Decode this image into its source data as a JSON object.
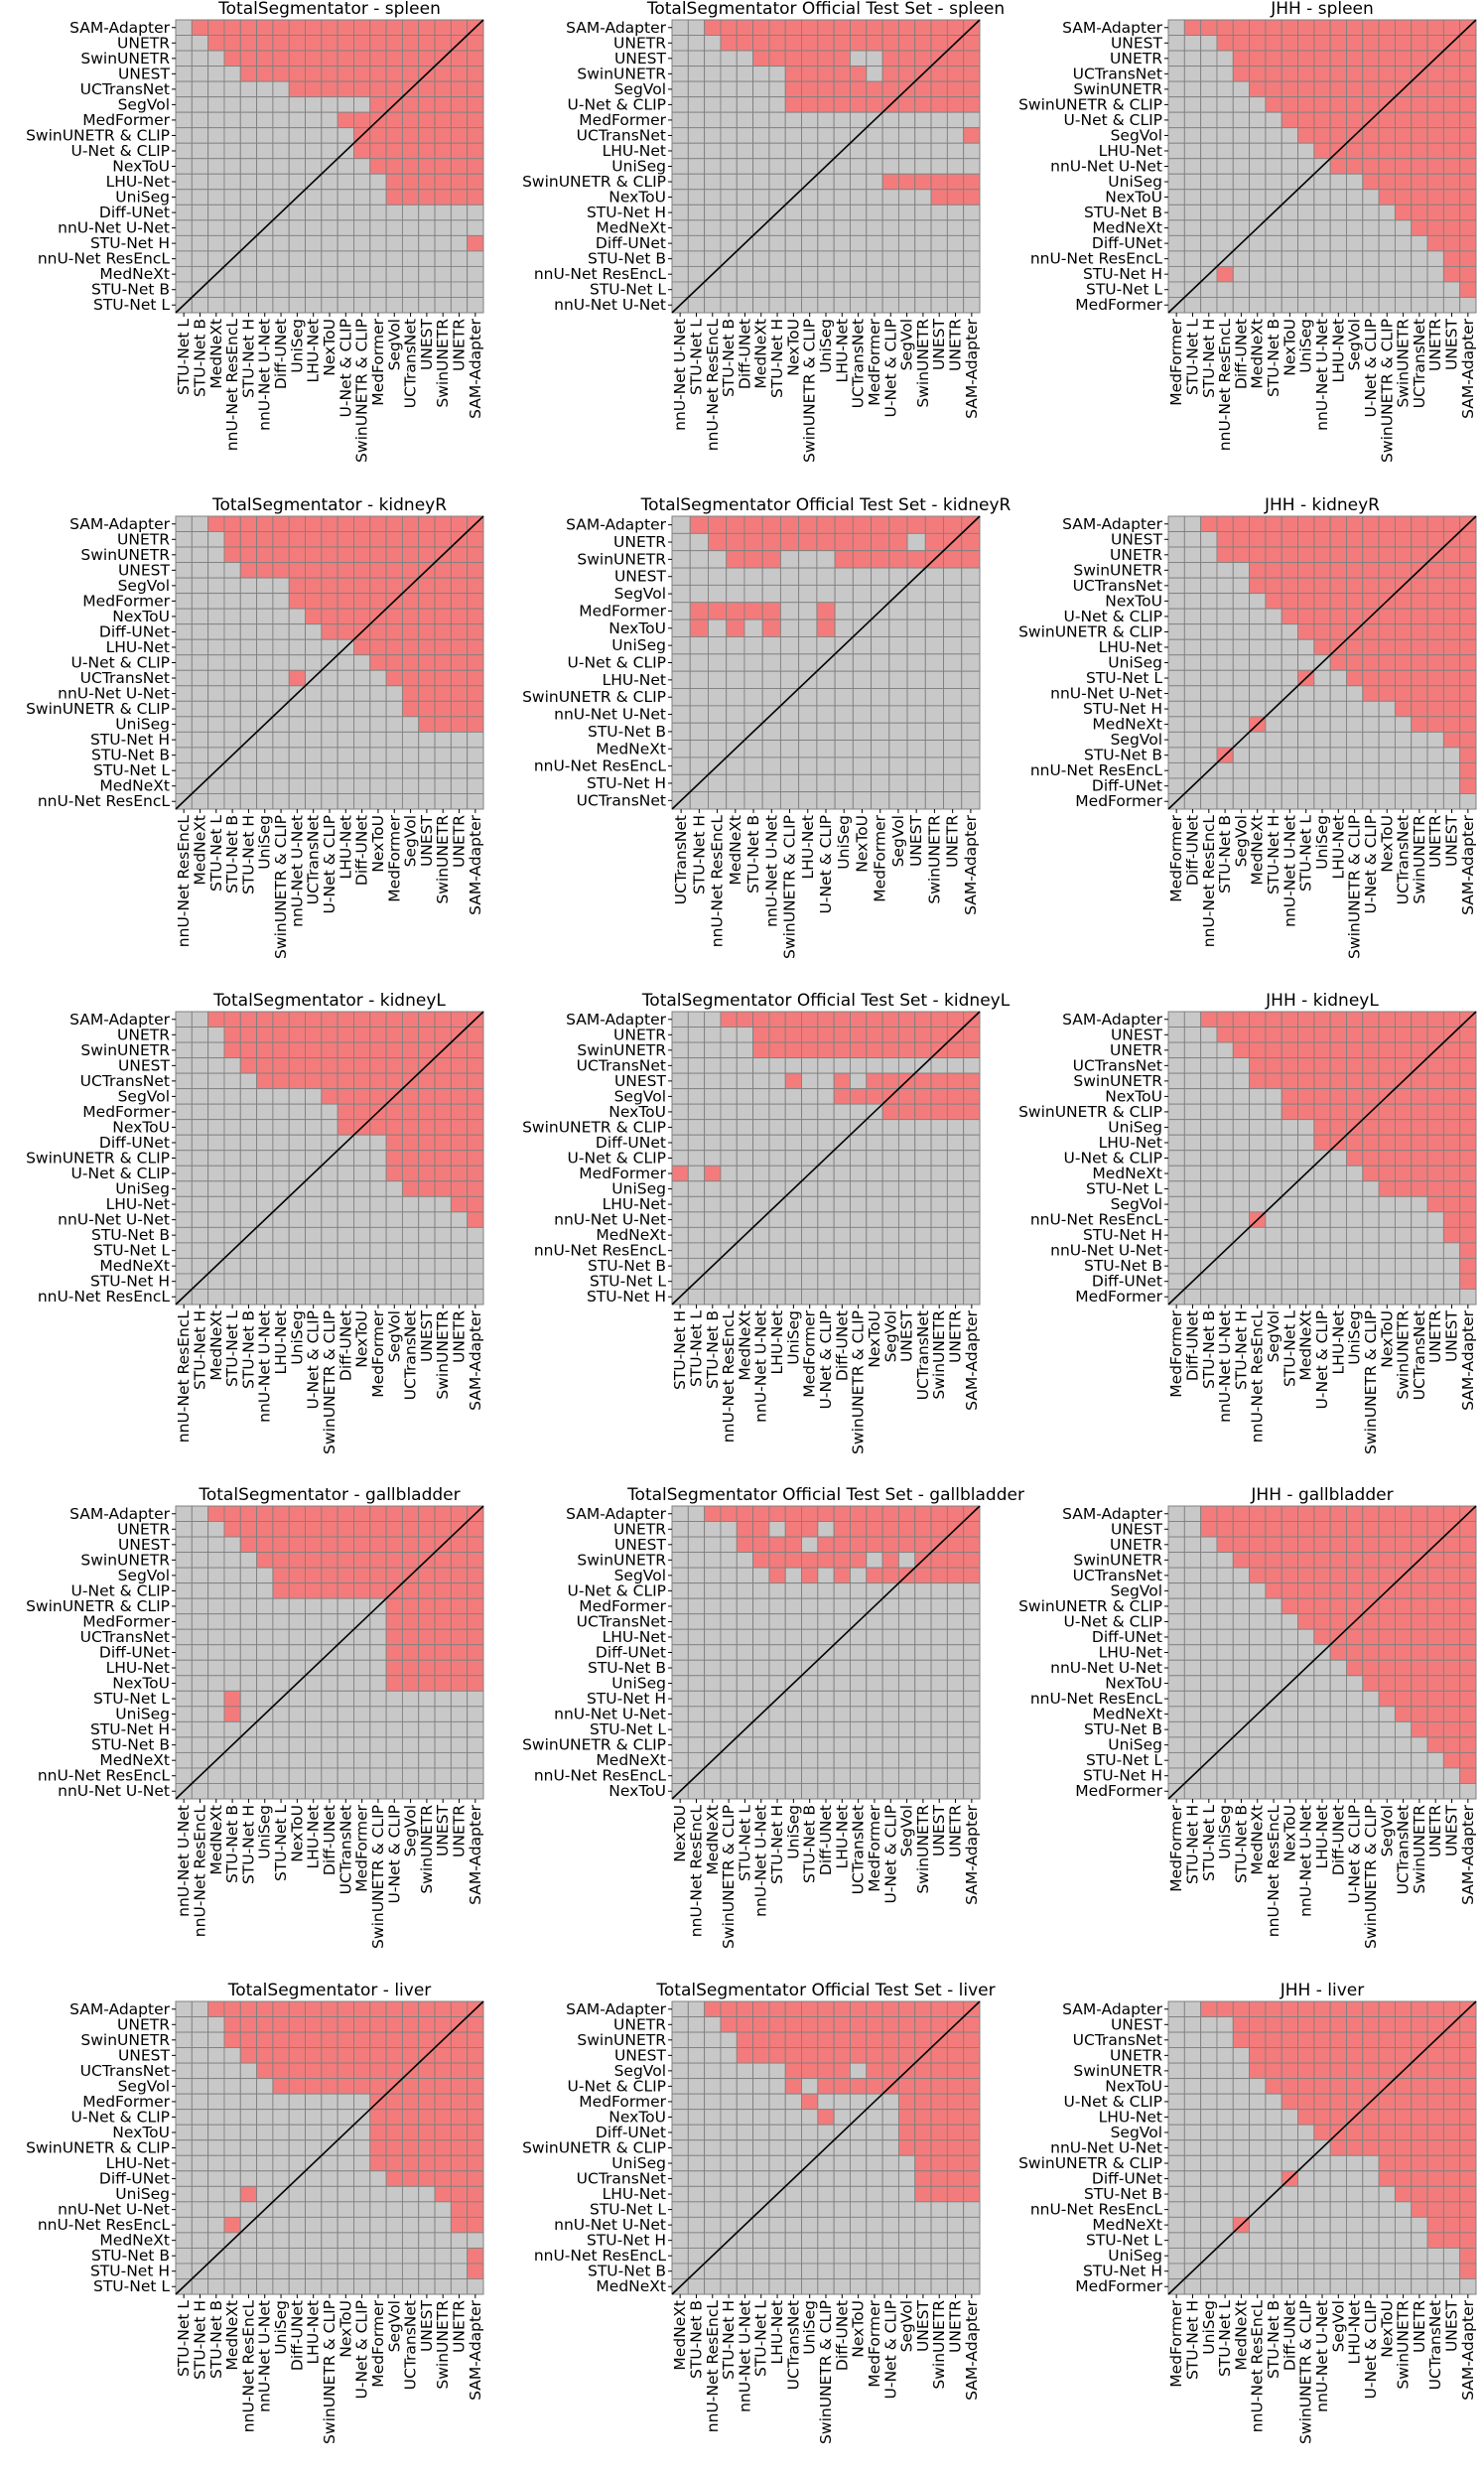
{
  "colors": {
    "significant": "#f47b7b",
    "not_significant": "#c8c8c8",
    "cell_border": "#808080",
    "diagonal": "#000000"
  },
  "chart_data": [
    {
      "type": "heatmap",
      "title": "TotalSegmentator - spleen",
      "rows": [
        "SAM-Adapter",
        "UNETR",
        "SwinUNETR",
        "UNEST",
        "UCTransNet",
        "SegVol",
        "MedFormer",
        "SwinUNETR & CLIP",
        "U-Net & CLIP",
        "NexToU",
        "LHU-Net",
        "UniSeg",
        "Diff-UNet",
        "nnU-Net U-Net",
        "STU-Net H",
        "nnU-Net ResEncL",
        "MedNeXt",
        "STU-Net B",
        "STU-Net L"
      ],
      "red_counts": [
        18,
        17,
        16,
        15,
        12,
        9,
        9,
        8,
        8,
        7,
        6,
        6,
        0,
        0,
        1,
        0,
        0,
        0,
        0
      ],
      "extra_grey": [
        [
          5,
          10
        ],
        [
          5,
          11
        ]
      ],
      "extra_red": []
    },
    {
      "type": "heatmap",
      "title": "TotalSegmentator Official Test Set - spleen",
      "rows": [
        "SAM-Adapter",
        "UNETR",
        "UNEST",
        "SwinUNETR",
        "SegVol",
        "U-Net & CLIP",
        "MedFormer",
        "UCTransNet",
        "LHU-Net",
        "UniSeg",
        "SwinUNETR & CLIP",
        "NexToU",
        "STU-Net H",
        "MedNeXt",
        "Diff-UNet",
        "STU-Net B",
        "nnU-Net ResEncL",
        "STU-Net L",
        "nnU-Net U-Net"
      ],
      "red_counts": [
        17,
        16,
        14,
        12,
        13,
        13,
        0,
        1,
        0,
        0,
        6,
        3,
        0,
        0,
        0,
        0,
        0,
        0,
        0
      ],
      "extra_grey": [
        [
          2,
          11
        ],
        [
          2,
          12
        ],
        [
          3,
          12
        ],
        [
          4,
          5
        ],
        [
          4,
          6
        ],
        [
          5,
          3
        ],
        [
          5,
          5
        ],
        [
          5,
          6
        ],
        [
          10,
          1
        ],
        [
          11,
          1
        ]
      ],
      "extra_red": []
    },
    {
      "type": "heatmap",
      "title": "JHH - spleen",
      "rows": [
        "SAM-Adapter",
        "UNEST",
        "UNETR",
        "UCTransNet",
        "SwinUNETR",
        "SwinUNETR & CLIP",
        "U-Net & CLIP",
        "SegVol",
        "LHU-Net",
        "nnU-Net U-Net",
        "UniSeg",
        "NexToU",
        "STU-Net B",
        "MedNeXt",
        "Diff-UNet",
        "nnU-Net ResEncL",
        "STU-Net H",
        "STU-Net L",
        "MedFormer"
      ],
      "red_counts": [
        18,
        16,
        15,
        15,
        14,
        13,
        12,
        11,
        10,
        9,
        7,
        6,
        5,
        4,
        3,
        2,
        2,
        1,
        0
      ],
      "extra_grey": [
        [
          12,
          1
        ],
        [
          14,
          1
        ],
        [
          16,
          1
        ]
      ],
      "extra_red": [
        [
          16,
          3
        ]
      ]
    },
    {
      "type": "heatmap",
      "title": "TotalSegmentator - kidneyR",
      "rows": [
        "SAM-Adapter",
        "UNETR",
        "SwinUNETR",
        "UNEST",
        "SegVol",
        "MedFormer",
        "NexToU",
        "Diff-UNet",
        "LHU-Net",
        "U-Net & CLIP",
        "UCTransNet",
        "nnU-Net U-Net",
        "SwinUNETR & CLIP",
        "UniSeg",
        "STU-Net H",
        "STU-Net B",
        "STU-Net L",
        "MedNeXt",
        "nnU-Net ResEncL"
      ],
      "red_counts": [
        17,
        16,
        16,
        15,
        13,
        12,
        11,
        10,
        8,
        7,
        6,
        5,
        5,
        4,
        0,
        0,
        0,
        0,
        0
      ],
      "extra_grey": [
        [
          4,
          6
        ],
        [
          5,
          6
        ],
        [
          6,
          6
        ],
        [
          7,
          6
        ],
        [
          8,
          6
        ],
        [
          8,
          7
        ],
        [
          7,
          8
        ],
        [
          8,
          3
        ],
        [
          9,
          3
        ],
        [
          10,
          3
        ],
        [
          9,
          4
        ],
        [
          10,
          4
        ],
        [
          10,
          6
        ],
        [
          11,
          4
        ]
      ],
      "extra_red": [
        [
          10,
          7
        ]
      ]
    },
    {
      "type": "heatmap",
      "title": "TotalSegmentator Official Test Set - kidneyR",
      "rows": [
        "SAM-Adapter",
        "UNETR",
        "SwinUNETR",
        "UNEST",
        "SegVol",
        "MedFormer",
        "NexToU",
        "UniSeg",
        "U-Net & CLIP",
        "LHU-Net",
        "SwinUNETR & CLIP",
        "nnU-Net U-Net",
        "STU-Net B",
        "MedNeXt",
        "nnU-Net ResEncL",
        "STU-Net H",
        "UCTransNet"
      ],
      "red_counts": [
        16,
        15,
        14,
        0,
        0,
        0,
        0,
        0,
        0,
        0,
        0,
        0,
        0,
        0,
        0,
        0,
        0
      ],
      "extra_grey": [
        [
          1,
          13
        ],
        [
          2,
          6
        ],
        [
          2,
          7
        ],
        [
          2,
          8
        ]
      ],
      "extra_red": [
        [
          5,
          1
        ],
        [
          5,
          2
        ],
        [
          5,
          3
        ],
        [
          5,
          4
        ],
        [
          5,
          5
        ],
        [
          5,
          8
        ],
        [
          6,
          1
        ],
        [
          6,
          3
        ],
        [
          6,
          5
        ],
        [
          6,
          8
        ]
      ]
    },
    {
      "type": "heatmap",
      "title": "JHH - kidneyR",
      "rows": [
        "SAM-Adapter",
        "UNEST",
        "UNETR",
        "SwinUNETR",
        "UCTransNet",
        "NexToU",
        "U-Net & CLIP",
        "SwinUNETR & CLIP",
        "LHU-Net",
        "UniSeg",
        "STU-Net L",
        "nnU-Net U-Net",
        "STU-Net H",
        "MedNeXt",
        "SegVol",
        "STU-Net B",
        "nnU-Net ResEncL",
        "Diff-UNet",
        "MedFormer"
      ],
      "red_counts": [
        17,
        16,
        16,
        14,
        14,
        13,
        12,
        11,
        10,
        9,
        8,
        7,
        5,
        4,
        2,
        1,
        1,
        1,
        0
      ],
      "extra_grey": [
        [
          12,
          4
        ],
        [
          15,
          1
        ]
      ],
      "extra_red": [
        [
          10,
          8
        ],
        [
          13,
          5
        ],
        [
          15,
          3
        ]
      ]
    },
    {
      "type": "heatmap",
      "title": "TotalSegmentator - kidneyL",
      "rows": [
        "SAM-Adapter",
        "UNETR",
        "SwinUNETR",
        "UNEST",
        "UCTransNet",
        "SegVol",
        "MedFormer",
        "NexToU",
        "Diff-UNet",
        "SwinUNETR & CLIP",
        "U-Net & CLIP",
        "UniSeg",
        "LHU-Net",
        "nnU-Net U-Net",
        "STU-Net B",
        "STU-Net L",
        "MedNeXt",
        "STU-Net H",
        "nnU-Net ResEncL"
      ],
      "red_counts": [
        17,
        16,
        16,
        15,
        14,
        10,
        9,
        9,
        6,
        6,
        6,
        5,
        2,
        1,
        0,
        0,
        0,
        0,
        0
      ],
      "extra_grey": [
        [
          12,
          1
        ]
      ],
      "extra_red": []
    },
    {
      "type": "heatmap",
      "title": "TotalSegmentator Official Test Set - kidneyL",
      "rows": [
        "SAM-Adapter",
        "UNETR",
        "SwinUNETR",
        "UCTransNet",
        "UNEST",
        "SegVol",
        "NexToU",
        "SwinUNETR & CLIP",
        "Diff-UNet",
        "U-Net & CLIP",
        "MedFormer",
        "UniSeg",
        "LHU-Net",
        "nnU-Net U-Net",
        "MedNeXt",
        "nnU-Net ResEncL",
        "STU-Net B",
        "STU-Net L",
        "STU-Net H"
      ],
      "red_counts": [
        16,
        14,
        14,
        0,
        12,
        9,
        6,
        0,
        0,
        0,
        0,
        0,
        0,
        0,
        0,
        0,
        0,
        0,
        0
      ],
      "extra_grey": [
        [
          4,
          8
        ],
        [
          4,
          9
        ],
        [
          4,
          11
        ]
      ],
      "extra_red": [
        [
          10,
          0
        ],
        [
          10,
          2
        ]
      ]
    },
    {
      "type": "heatmap",
      "title": "JHH - kidneyL",
      "rows": [
        "SAM-Adapter",
        "UNEST",
        "UNETR",
        "UCTransNet",
        "SwinUNETR",
        "NexToU",
        "SwinUNETR & CLIP",
        "UniSeg",
        "LHU-Net",
        "U-Net & CLIP",
        "MedNeXt",
        "STU-Net L",
        "SegVol",
        "nnU-Net ResEncL",
        "STU-Net H",
        "nnU-Net U-Net",
        "STU-Net B",
        "Diff-UNet",
        "MedFormer"
      ],
      "red_counts": [
        17,
        16,
        15,
        14,
        14,
        12,
        12,
        10,
        10,
        8,
        7,
        6,
        3,
        2,
        2,
        1,
        1,
        1,
        0
      ],
      "extra_grey": [
        [
          13,
          2
        ],
        [
          13,
          3
        ],
        [
          14,
          1
        ],
        [
          15,
          1
        ]
      ],
      "extra_red": [
        [
          13,
          5
        ]
      ]
    },
    {
      "type": "heatmap",
      "title": "TotalSegmentator - gallbladder",
      "rows": [
        "SAM-Adapter",
        "UNETR",
        "UNEST",
        "SwinUNETR",
        "SegVol",
        "U-Net & CLIP",
        "SwinUNETR & CLIP",
        "MedFormer",
        "UCTransNet",
        "Diff-UNet",
        "LHU-Net",
        "NexToU",
        "STU-Net L",
        "UniSeg",
        "STU-Net H",
        "STU-Net B",
        "MedNeXt",
        "nnU-Net ResEncL",
        "nnU-Net U-Net"
      ],
      "red_counts": [
        17,
        16,
        15,
        14,
        13,
        13,
        6,
        6,
        6,
        6,
        6,
        6,
        0,
        0,
        0,
        0,
        0,
        0,
        0
      ],
      "extra_grey": [
        [
          6,
          4
        ],
        [
          7,
          4
        ],
        [
          8,
          4
        ],
        [
          9,
          4
        ],
        [
          10,
          4
        ],
        [
          11,
          4
        ],
        [
          9,
          2
        ],
        [
          10,
          3
        ],
        [
          11,
          1
        ],
        [
          11,
          2
        ],
        [
          11,
          3
        ]
      ],
      "extra_red": [
        [
          12,
          3
        ],
        [
          13,
          3
        ]
      ]
    },
    {
      "type": "heatmap",
      "title": "TotalSegmentator Official Test Set - gallbladder",
      "rows": [
        "SAM-Adapter",
        "UNETR",
        "UNEST",
        "SwinUNETR",
        "SegVol",
        "U-Net & CLIP",
        "MedFormer",
        "UCTransNet",
        "LHU-Net",
        "Diff-UNet",
        "STU-Net B",
        "UniSeg",
        "STU-Net H",
        "nnU-Net U-Net",
        "STU-Net L",
        "SwinUNETR & CLIP",
        "MedNeXt",
        "nnU-Net ResEncL",
        "NexToU"
      ],
      "red_counts": [
        17,
        16,
        15,
        14,
        13,
        0,
        0,
        0,
        0,
        0,
        0,
        0,
        0,
        0,
        0,
        0,
        0,
        0,
        0
      ],
      "extra_grey": [
        [
          1,
          1
        ],
        [
          1,
          3
        ],
        [
          1,
          6
        ],
        [
          1,
          9
        ],
        [
          2,
          8
        ],
        [
          3,
          12
        ],
        [
          3,
          14
        ],
        [
          4,
          0
        ],
        [
          4,
          1
        ],
        [
          4,
          2
        ],
        [
          4,
          3
        ],
        [
          4,
          5
        ],
        [
          4,
          7
        ],
        [
          4,
          9
        ],
        [
          4,
          11
        ]
      ],
      "extra_red": []
    },
    {
      "type": "heatmap",
      "title": "JHH - gallbladder",
      "rows": [
        "SAM-Adapter",
        "UNEST",
        "UNETR",
        "SwinUNETR",
        "UCTransNet",
        "SegVol",
        "SwinUNETR & CLIP",
        "U-Net & CLIP",
        "Diff-UNet",
        "LHU-Net",
        "nnU-Net U-Net",
        "NexToU",
        "nnU-Net ResEncL",
        "MedNeXt",
        "STU-Net B",
        "UniSeg",
        "STU-Net L",
        "STU-Net H",
        "MedFormer"
      ],
      "red_counts": [
        17,
        17,
        16,
        15,
        14,
        13,
        12,
        11,
        10,
        9,
        8,
        7,
        6,
        5,
        4,
        3,
        2,
        1,
        0
      ],
      "extra_grey": [
        [
          9,
          8
        ],
        [
          10,
          7
        ],
        [
          11,
          6
        ],
        [
          12,
          5
        ]
      ],
      "extra_red": []
    },
    {
      "type": "heatmap",
      "title": "TotalSegmentator - liver",
      "rows": [
        "SAM-Adapter",
        "UNETR",
        "SwinUNETR",
        "UNEST",
        "UCTransNet",
        "SegVol",
        "MedFormer",
        "U-Net & CLIP",
        "NexToU",
        "SwinUNETR & CLIP",
        "LHU-Net",
        "Diff-UNet",
        "UniSeg",
        "nnU-Net U-Net",
        "nnU-Net ResEncL",
        "MedNeXt",
        "STU-Net B",
        "STU-Net H",
        "STU-Net L"
      ],
      "red_counts": [
        17,
        16,
        16,
        15,
        14,
        13,
        7,
        7,
        7,
        7,
        7,
        6,
        3,
        2,
        2,
        0,
        1,
        1,
        0
      ],
      "extra_grey": [
        [
          11,
          1
        ],
        [
          11,
          2
        ],
        [
          12,
          0
        ],
        [
          13,
          1
        ],
        [
          14,
          1
        ]
      ],
      "extra_red": [
        [
          12,
          4
        ],
        [
          14,
          3
        ]
      ]
    },
    {
      "type": "heatmap",
      "title": "TotalSegmentator Official Test Set - liver",
      "rows": [
        "SAM-Adapter",
        "UNETR",
        "SwinUNETR",
        "UNEST",
        "SegVol",
        "U-Net & CLIP",
        "MedFormer",
        "NexToU",
        "Diff-UNet",
        "SwinUNETR & CLIP",
        "UniSeg",
        "UCTransNet",
        "LHU-Net",
        "STU-Net L",
        "nnU-Net U-Net",
        "STU-Net H",
        "nnU-Net ResEncL",
        "STU-Net B",
        "MedNeXt"
      ],
      "red_counts": [
        17,
        16,
        15,
        15,
        12,
        12,
        5,
        5,
        5,
        5,
        4,
        4,
        4,
        0,
        0,
        0,
        0,
        0,
        0
      ],
      "extra_grey": [
        [
          4,
          11
        ],
        [
          5,
          5
        ],
        [
          5,
          8
        ],
        [
          6,
          3
        ],
        [
          7,
          2
        ],
        [
          8,
          1
        ],
        [
          8,
          2
        ],
        [
          10,
          1
        ],
        [
          12,
          2
        ]
      ],
      "extra_red": [
        [
          6,
          8
        ],
        [
          7,
          9
        ]
      ]
    },
    {
      "type": "heatmap",
      "title": "JHH - liver",
      "rows": [
        "SAM-Adapter",
        "UNEST",
        "UCTransNet",
        "UNETR",
        "SwinUNETR",
        "NexToU",
        "U-Net & CLIP",
        "LHU-Net",
        "SegVol",
        "nnU-Net U-Net",
        "SwinUNETR & CLIP",
        "Diff-UNet",
        "STU-Net B",
        "nnU-Net ResEncL",
        "MedNeXt",
        "STU-Net L",
        "UniSeg",
        "STU-Net H",
        "MedFormer"
      ],
      "red_counts": [
        17,
        15,
        15,
        14,
        14,
        13,
        12,
        11,
        10,
        9,
        6,
        6,
        5,
        4,
        3,
        3,
        1,
        1,
        0
      ],
      "extra_grey": [],
      "extra_red": [
        [
          11,
          7
        ],
        [
          14,
          4
        ]
      ]
    }
  ]
}
